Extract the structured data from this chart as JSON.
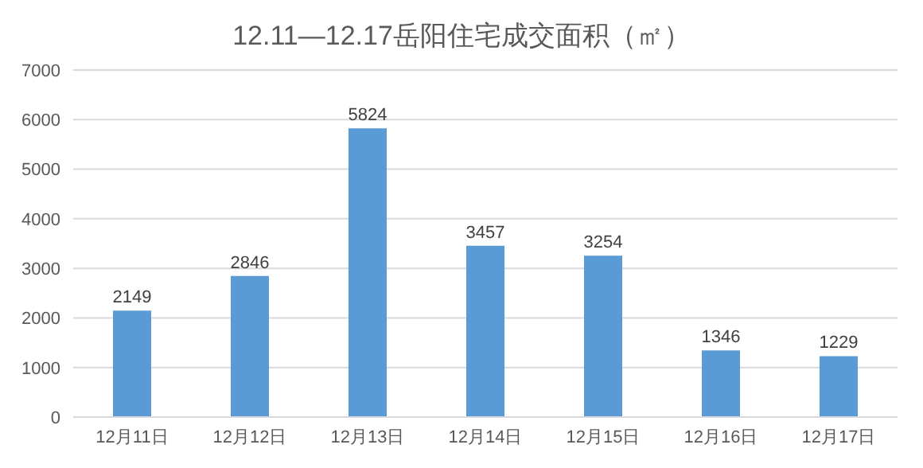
{
  "chart_data": {
    "type": "bar",
    "title": "12.11—12.17岳阳住宅成交面积（㎡）",
    "categories": [
      "12月11日",
      "12月12日",
      "12月13日",
      "12月14日",
      "12月15日",
      "12月16日",
      "12月17日"
    ],
    "values": [
      2149,
      2846,
      5824,
      3457,
      3254,
      1346,
      1229
    ],
    "color": "#5b9bd5",
    "ylim": [
      0,
      7000
    ],
    "yticks": [
      0,
      1000,
      2000,
      3000,
      4000,
      5000,
      6000,
      7000
    ],
    "grid": "y",
    "data_labels": true
  }
}
